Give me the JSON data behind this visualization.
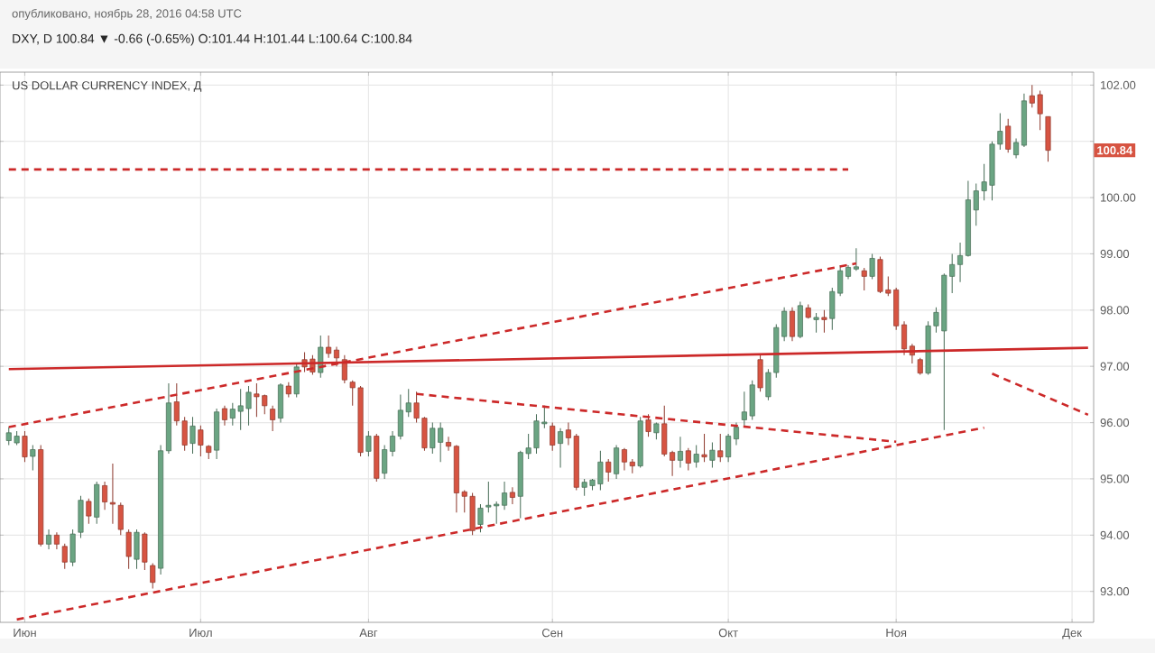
{
  "chart_data": {
    "type": "candlestick",
    "title": "опубликовано, ноябрь 28, 2016 04:58 UTC",
    "subtitle": "DXY, D 100.84 ▼ -0.66 (-0.65%) O:101.44 H:101.44 L:100.64 C:100.84",
    "annotations": [
      "US DOLLAR CURRENCY INDEX, Д",
      {
        "text": "100.84",
        "y": 100.84
      }
    ],
    "categories": [
      null,
      null,
      "Июн",
      null,
      null,
      null,
      null,
      null,
      null,
      null,
      null,
      null,
      null,
      null,
      null,
      null,
      null,
      null,
      null,
      null,
      null,
      null,
      null,
      null,
      "Июл",
      null,
      null,
      null,
      null,
      null,
      null,
      null,
      null,
      null,
      null,
      null,
      null,
      null,
      null,
      null,
      null,
      null,
      null,
      null,
      null,
      "Авг",
      null,
      null,
      null,
      null,
      null,
      null,
      null,
      null,
      null,
      null,
      null,
      null,
      null,
      null,
      null,
      null,
      null,
      null,
      null,
      null,
      null,
      null,
      "Сен",
      null,
      null,
      null,
      null,
      null,
      null,
      null,
      null,
      null,
      null,
      null,
      null,
      null,
      null,
      null,
      null,
      null,
      null,
      null,
      null,
      null,
      "Окт",
      null,
      null,
      null,
      null,
      null,
      null,
      null,
      null,
      null,
      null,
      null,
      null,
      null,
      null,
      null,
      null,
      null,
      null,
      null,
      null,
      "Ноя",
      null,
      null,
      null,
      null,
      null,
      null,
      null,
      null,
      null,
      null,
      null,
      null,
      null,
      null,
      null,
      null,
      null,
      null,
      null,
      null,
      null,
      "Дек",
      null,
      null
    ],
    "ylim": [
      92.45,
      102.23
    ],
    "yticks": [
      {
        "value": 93,
        "label": "93.00"
      },
      {
        "value": 94,
        "label": "94.00"
      },
      {
        "value": 95,
        "label": "95.00"
      },
      {
        "value": 96,
        "label": "96.00"
      },
      {
        "value": 97,
        "label": "97.00"
      },
      {
        "value": 98,
        "label": "98.00"
      },
      {
        "value": 99,
        "label": "99.00"
      },
      {
        "value": 100,
        "label": "100.00"
      },
      {
        "value": 101,
        "label": null
      },
      {
        "value": 102,
        "label": "102.00"
      }
    ],
    "grid": true,
    "series": [
      {
        "ohlc": [
          [
            95.68,
            95.92,
            95.6,
            95.82
          ],
          [
            95.64,
            95.85,
            95.6,
            95.76
          ],
          [
            95.76,
            95.85,
            95.3,
            95.39
          ],
          [
            95.4,
            95.6,
            95.15,
            95.52
          ],
          [
            95.52,
            95.6,
            93.8,
            93.84
          ],
          [
            93.84,
            94.1,
            93.75,
            94.0
          ],
          [
            94.0,
            94.05,
            93.75,
            93.84
          ],
          [
            93.8,
            93.85,
            93.4,
            93.52
          ],
          [
            93.52,
            94.1,
            93.45,
            94.02
          ],
          [
            94.05,
            94.7,
            93.95,
            94.62
          ],
          [
            94.6,
            94.65,
            94.2,
            94.34
          ],
          [
            94.32,
            94.95,
            94.2,
            94.9
          ],
          [
            94.88,
            94.95,
            94.45,
            94.59
          ],
          [
            94.58,
            95.27,
            94.2,
            94.55
          ],
          [
            94.53,
            94.58,
            94.0,
            94.1
          ],
          [
            94.05,
            94.1,
            93.4,
            93.62
          ],
          [
            93.57,
            94.1,
            93.4,
            94.05
          ],
          [
            94.02,
            94.05,
            93.38,
            93.52
          ],
          [
            93.46,
            93.5,
            93.05,
            93.16
          ],
          [
            93.41,
            95.6,
            93.3,
            95.5
          ],
          [
            95.5,
            96.7,
            95.45,
            96.35
          ],
          [
            96.37,
            96.7,
            95.95,
            96.03
          ],
          [
            96.03,
            96.1,
            95.5,
            95.6
          ],
          [
            95.63,
            96.1,
            95.45,
            95.94
          ],
          [
            95.87,
            95.95,
            95.4,
            95.6
          ],
          [
            95.58,
            95.6,
            95.35,
            95.47
          ],
          [
            95.51,
            96.25,
            95.35,
            96.19
          ],
          [
            96.25,
            96.3,
            95.95,
            96.05
          ],
          [
            96.08,
            96.35,
            95.95,
            96.24
          ],
          [
            96.2,
            96.6,
            95.87,
            96.3
          ],
          [
            96.25,
            96.65,
            95.95,
            96.54
          ],
          [
            96.51,
            96.7,
            96.1,
            96.46
          ],
          [
            96.48,
            96.5,
            96.15,
            96.3
          ],
          [
            96.24,
            96.3,
            95.85,
            96.05
          ],
          [
            96.08,
            96.7,
            96.0,
            96.67
          ],
          [
            96.65,
            96.72,
            96.45,
            96.51
          ],
          [
            96.51,
            97.05,
            96.45,
            96.99
          ],
          [
            97.12,
            97.25,
            96.9,
            96.99
          ],
          [
            97.13,
            97.2,
            96.85,
            96.9
          ],
          [
            96.89,
            97.55,
            96.8,
            97.34
          ],
          [
            97.34,
            97.55,
            97.15,
            97.23
          ],
          [
            97.29,
            97.35,
            97.0,
            97.15
          ],
          [
            97.12,
            97.2,
            96.7,
            96.76
          ],
          [
            96.72,
            96.75,
            96.3,
            96.62
          ],
          [
            96.62,
            96.65,
            95.4,
            95.47
          ],
          [
            95.49,
            95.85,
            95.4,
            95.76
          ],
          [
            95.76,
            95.8,
            94.95,
            95.01
          ],
          [
            95.1,
            95.6,
            95.0,
            95.52
          ],
          [
            95.49,
            95.85,
            95.4,
            95.76
          ],
          [
            95.76,
            96.5,
            95.7,
            96.22
          ],
          [
            96.19,
            96.6,
            96.1,
            96.35
          ],
          [
            96.35,
            96.55,
            96.0,
            96.08
          ],
          [
            96.08,
            96.1,
            95.5,
            95.55
          ],
          [
            95.55,
            96.0,
            95.45,
            95.9
          ],
          [
            95.65,
            96.0,
            95.3,
            95.9
          ],
          [
            95.65,
            95.75,
            95.5,
            95.58
          ],
          [
            95.58,
            95.6,
            94.4,
            94.75
          ],
          [
            94.77,
            94.8,
            94.4,
            94.69
          ],
          [
            94.69,
            94.75,
            94.0,
            94.08
          ],
          [
            94.19,
            94.55,
            94.05,
            94.48
          ],
          [
            94.5,
            94.95,
            94.4,
            94.53
          ],
          [
            94.52,
            94.6,
            94.2,
            94.55
          ],
          [
            94.53,
            94.95,
            94.45,
            94.75
          ],
          [
            94.76,
            94.85,
            94.55,
            94.67
          ],
          [
            94.69,
            95.5,
            94.3,
            95.47
          ],
          [
            95.45,
            95.8,
            95.35,
            95.55
          ],
          [
            95.55,
            96.15,
            95.45,
            96.03
          ],
          [
            95.98,
            96.3,
            95.9,
            96.01
          ],
          [
            95.94,
            96.0,
            95.5,
            95.6
          ],
          [
            95.63,
            95.9,
            95.2,
            95.84
          ],
          [
            95.87,
            96.0,
            95.6,
            95.73
          ],
          [
            95.76,
            95.8,
            94.8,
            94.85
          ],
          [
            94.85,
            95.0,
            94.7,
            94.94
          ],
          [
            94.88,
            95.0,
            94.8,
            94.98
          ],
          [
            94.91,
            95.5,
            94.8,
            95.3
          ],
          [
            95.3,
            95.35,
            94.95,
            95.12
          ],
          [
            95.09,
            95.6,
            95.0,
            95.55
          ],
          [
            95.52,
            95.55,
            95.15,
            95.3
          ],
          [
            95.3,
            95.35,
            95.1,
            95.23
          ],
          [
            95.23,
            96.1,
            95.2,
            96.03
          ],
          [
            96.05,
            96.15,
            95.75,
            95.84
          ],
          [
            95.82,
            96.0,
            95.7,
            95.98
          ],
          [
            95.98,
            96.3,
            95.4,
            95.44
          ],
          [
            95.47,
            95.5,
            95.05,
            95.33
          ],
          [
            95.33,
            95.75,
            95.2,
            95.49
          ],
          [
            95.5,
            95.55,
            95.15,
            95.28
          ],
          [
            95.3,
            95.6,
            95.2,
            95.44
          ],
          [
            95.43,
            95.8,
            95.3,
            95.39
          ],
          [
            95.33,
            95.65,
            95.2,
            95.51
          ],
          [
            95.5,
            95.8,
            95.3,
            95.39
          ],
          [
            95.39,
            95.8,
            95.3,
            95.76
          ],
          [
            95.71,
            96.0,
            95.6,
            95.92
          ],
          [
            96.05,
            96.55,
            95.95,
            96.19
          ],
          [
            96.12,
            96.75,
            96.05,
            96.67
          ],
          [
            97.12,
            97.2,
            96.55,
            96.62
          ],
          [
            96.46,
            96.95,
            96.4,
            96.89
          ],
          [
            96.89,
            97.75,
            96.8,
            97.69
          ],
          [
            97.53,
            98.05,
            97.45,
            97.98
          ],
          [
            97.98,
            98.05,
            97.45,
            97.53
          ],
          [
            97.53,
            98.15,
            97.5,
            98.08
          ],
          [
            98.04,
            98.1,
            97.85,
            97.87
          ],
          [
            97.83,
            97.95,
            97.6,
            97.87
          ],
          [
            97.87,
            98.0,
            97.6,
            97.83
          ],
          [
            97.85,
            98.4,
            97.65,
            98.33
          ],
          [
            98.3,
            98.8,
            98.25,
            98.7
          ],
          [
            98.6,
            98.8,
            98.55,
            98.76
          ],
          [
            98.73,
            99.1,
            98.7,
            98.77
          ],
          [
            98.7,
            98.75,
            98.35,
            98.6
          ],
          [
            98.6,
            99.0,
            98.55,
            98.92
          ],
          [
            98.9,
            98.95,
            98.3,
            98.33
          ],
          [
            98.36,
            98.6,
            98.25,
            98.3
          ],
          [
            98.36,
            98.4,
            97.65,
            97.72
          ],
          [
            97.74,
            97.8,
            97.2,
            97.31
          ],
          [
            97.36,
            97.4,
            97.05,
            97.2
          ],
          [
            97.12,
            97.15,
            96.85,
            96.88
          ],
          [
            96.88,
            97.8,
            96.85,
            97.72
          ],
          [
            97.72,
            98.05,
            97.6,
            97.96
          ],
          [
            97.63,
            98.65,
            95.87,
            98.62
          ],
          [
            98.6,
            99.0,
            98.3,
            98.81
          ],
          [
            98.81,
            99.2,
            98.5,
            98.97
          ],
          [
            98.97,
            100.3,
            98.95,
            99.96
          ],
          [
            99.78,
            100.25,
            99.5,
            100.12
          ],
          [
            100.12,
            100.6,
            99.95,
            100.28
          ],
          [
            100.22,
            101.0,
            99.95,
            100.95
          ],
          [
            100.95,
            101.5,
            100.85,
            101.18
          ],
          [
            101.27,
            101.4,
            100.8,
            100.86
          ],
          [
            100.76,
            101.05,
            100.7,
            100.98
          ],
          [
            100.93,
            101.85,
            100.9,
            101.72
          ],
          [
            101.81,
            102.0,
            101.6,
            101.68
          ],
          [
            101.83,
            101.9,
            101.2,
            101.49
          ],
          [
            101.44,
            101.44,
            100.64,
            100.84
          ],
          null,
          null,
          null,
          null,
          null
        ],
        "colors": [
          "#6ba583",
          "#6ba583",
          "#d75442",
          "#6ba583",
          "#d75442",
          "#6ba583",
          "#d75442",
          "#d75442",
          "#6ba583",
          "#6ba583",
          "#d75442",
          "#6ba583",
          "#d75442",
          "#d75442",
          "#d75442",
          "#d75442",
          "#6ba583",
          "#d75442",
          "#d75442",
          "#6ba583",
          "#6ba583",
          "#d75442",
          "#d75442",
          "#6ba583",
          "#d75442",
          "#d75442",
          "#6ba583",
          "#d75442",
          "#6ba583",
          "#6ba583",
          "#6ba583",
          "#d75442",
          "#d75442",
          "#d75442",
          "#6ba583",
          "#d75442",
          "#6ba583",
          "#d75442",
          "#d75442",
          "#6ba583",
          "#d75442",
          "#d75442",
          "#d75442",
          "#d75442",
          "#d75442",
          "#6ba583",
          "#d75442",
          "#6ba583",
          "#6ba583",
          "#6ba583",
          "#6ba583",
          "#d75442",
          "#d75442",
          "#6ba583",
          "#6ba583",
          "#d75442",
          "#d75442",
          "#d75442",
          "#d75442",
          "#6ba583",
          "#6ba583",
          "#6ba583",
          "#6ba583",
          "#d75442",
          "#6ba583",
          "#6ba583",
          "#6ba583",
          "#6ba583",
          "#d75442",
          "#6ba583",
          "#d75442",
          "#d75442",
          "#6ba583",
          "#6ba583",
          "#6ba583",
          "#d75442",
          "#6ba583",
          "#d75442",
          "#d75442",
          "#6ba583",
          "#d75442",
          "#6ba583",
          "#d75442",
          "#d75442",
          "#6ba583",
          "#d75442",
          "#6ba583",
          "#d75442",
          "#6ba583",
          "#d75442",
          "#6ba583",
          "#6ba583",
          "#6ba583",
          "#6ba583",
          "#d75442",
          "#6ba583",
          "#6ba583",
          "#6ba583",
          "#d75442",
          "#6ba583",
          "#d75442",
          "#6ba583",
          "#d75442",
          "#6ba583",
          "#6ba583",
          "#6ba583",
          "#6ba583",
          "#d75442",
          "#6ba583",
          "#d75442",
          "#d75442",
          "#d75442",
          "#d75442",
          "#d75442",
          "#d75442",
          "#6ba583",
          "#6ba583",
          "#6ba583",
          "#6ba583",
          "#6ba583",
          "#6ba583",
          "#6ba583",
          "#6ba583",
          "#6ba583",
          "#6ba583",
          "#d75442",
          "#6ba583",
          "#6ba583",
          "#d75442",
          "#d75442",
          "#d75442",
          null,
          null,
          null,
          null,
          null
        ]
      },
      {
        "type": "line",
        "color": "#cc2929",
        "line_style": "dashed",
        "values": [
          100.5,
          null,
          null,
          null,
          null,
          null,
          null,
          null,
          null,
          null,
          null,
          null,
          null,
          null,
          null,
          null,
          null,
          null,
          null,
          null,
          null,
          null,
          null,
          null,
          null,
          null,
          null,
          null,
          null,
          null,
          null,
          null,
          null,
          null,
          null,
          null,
          null,
          null,
          null,
          null,
          null,
          null,
          null,
          null,
          null,
          null,
          null,
          null,
          null,
          null,
          null,
          null,
          null,
          null,
          null,
          null,
          null,
          null,
          null,
          null,
          null,
          null,
          null,
          null,
          null,
          null,
          null,
          null,
          null,
          null,
          null,
          null,
          null,
          null,
          null,
          null,
          null,
          null,
          null,
          null,
          null,
          null,
          null,
          null,
          null,
          null,
          null,
          null,
          null,
          null,
          null,
          null,
          null,
          null,
          null,
          null,
          null,
          null,
          null,
          null,
          null,
          null,
          null,
          null,
          null,
          100.5,
          null,
          null,
          null,
          null,
          null,
          null,
          null,
          null,
          null,
          null,
          null,
          null,
          null,
          null,
          null,
          null,
          null,
          null,
          null,
          null,
          null,
          null,
          null,
          null,
          null,
          null,
          null,
          null,
          null,
          null
        ]
      },
      {
        "type": "line",
        "color": "#cc2929",
        "line_style": "solid",
        "values": [
          96.95,
          null,
          null,
          null,
          null,
          null,
          null,
          null,
          null,
          null,
          null,
          null,
          null,
          null,
          null,
          null,
          null,
          null,
          null,
          null,
          null,
          null,
          null,
          null,
          null,
          null,
          null,
          null,
          null,
          null,
          null,
          null,
          null,
          null,
          null,
          null,
          null,
          null,
          null,
          null,
          null,
          null,
          null,
          null,
          null,
          null,
          null,
          null,
          null,
          null,
          null,
          null,
          null,
          null,
          null,
          null,
          null,
          null,
          null,
          null,
          null,
          null,
          null,
          null,
          null,
          null,
          null,
          null,
          null,
          null,
          null,
          null,
          null,
          null,
          null,
          null,
          null,
          null,
          null,
          null,
          null,
          null,
          null,
          null,
          null,
          null,
          null,
          null,
          null,
          null,
          null,
          null,
          null,
          null,
          null,
          null,
          null,
          null,
          null,
          null,
          null,
          null,
          null,
          null,
          null,
          null,
          null,
          null,
          null,
          null,
          null,
          null,
          null,
          null,
          null,
          null,
          null,
          null,
          null,
          null,
          null,
          null,
          null,
          null,
          null,
          null,
          null,
          null,
          null,
          null,
          null,
          null,
          null,
          null,
          null,
          97.33
        ]
      },
      {
        "type": "line",
        "color": "#cc2929",
        "line_style": "dashed",
        "values": [
          95.92,
          null,
          null,
          null,
          null,
          null,
          null,
          null,
          null,
          null,
          null,
          null,
          null,
          null,
          null,
          null,
          null,
          null,
          null,
          null,
          null,
          null,
          null,
          null,
          null,
          null,
          null,
          null,
          null,
          null,
          null,
          null,
          null,
          null,
          null,
          null,
          null,
          null,
          null,
          null,
          null,
          null,
          null,
          null,
          null,
          null,
          null,
          null,
          null,
          null,
          null,
          null,
          null,
          null,
          null,
          null,
          null,
          null,
          null,
          null,
          null,
          null,
          null,
          null,
          null,
          null,
          null,
          null,
          null,
          null,
          null,
          null,
          null,
          null,
          null,
          null,
          null,
          null,
          null,
          null,
          null,
          null,
          null,
          null,
          null,
          null,
          null,
          null,
          null,
          null,
          null,
          null,
          null,
          null,
          null,
          null,
          null,
          null,
          null,
          null,
          null,
          null,
          null,
          null,
          null,
          null,
          98.83,
          null,
          null,
          null,
          null,
          null,
          null,
          null,
          null,
          null,
          null,
          null,
          null,
          null,
          null,
          null,
          null,
          null,
          null,
          null,
          null,
          null,
          null,
          null,
          null,
          null,
          null,
          null,
          null,
          null
        ]
      },
      {
        "type": "line",
        "color": "#cc2929",
        "line_style": "dashed",
        "values": [
          null,
          92.5,
          null,
          null,
          null,
          null,
          null,
          null,
          null,
          null,
          null,
          null,
          null,
          null,
          null,
          null,
          null,
          null,
          null,
          null,
          null,
          null,
          null,
          null,
          null,
          null,
          null,
          null,
          null,
          null,
          null,
          null,
          null,
          null,
          null,
          null,
          null,
          null,
          null,
          null,
          null,
          null,
          null,
          null,
          null,
          null,
          null,
          null,
          null,
          null,
          null,
          null,
          null,
          null,
          null,
          null,
          null,
          null,
          null,
          null,
          null,
          null,
          null,
          null,
          null,
          null,
          null,
          null,
          null,
          null,
          null,
          null,
          null,
          null,
          null,
          null,
          null,
          null,
          null,
          null,
          null,
          null,
          null,
          null,
          null,
          null,
          null,
          null,
          null,
          null,
          null,
          null,
          null,
          null,
          null,
          null,
          null,
          null,
          null,
          null,
          null,
          null,
          null,
          null,
          null,
          null,
          null,
          null,
          null,
          null,
          null,
          null,
          null,
          null,
          null,
          null,
          null,
          null,
          null,
          null,
          null,
          null,
          95.91,
          null,
          null,
          null,
          null,
          null,
          null,
          null,
          null,
          null,
          null,
          null,
          null,
          null
        ]
      },
      {
        "type": "line",
        "color": "#cc2929",
        "line_style": "dashed",
        "values": [
          null,
          null,
          null,
          null,
          null,
          null,
          null,
          null,
          null,
          null,
          null,
          null,
          null,
          null,
          null,
          null,
          null,
          null,
          null,
          null,
          null,
          null,
          null,
          null,
          null,
          null,
          null,
          null,
          null,
          null,
          null,
          null,
          null,
          null,
          null,
          null,
          null,
          null,
          null,
          null,
          null,
          null,
          null,
          null,
          null,
          null,
          null,
          null,
          null,
          null,
          null,
          96.51,
          null,
          null,
          null,
          null,
          null,
          null,
          null,
          null,
          null,
          null,
          null,
          null,
          null,
          null,
          null,
          null,
          null,
          null,
          null,
          null,
          null,
          null,
          null,
          null,
          null,
          null,
          null,
          null,
          null,
          null,
          null,
          null,
          null,
          null,
          null,
          null,
          null,
          null,
          null,
          null,
          null,
          null,
          null,
          null,
          null,
          null,
          null,
          null,
          null,
          null,
          null,
          null,
          null,
          null,
          null,
          null,
          null,
          null,
          null,
          95.66,
          null,
          null,
          null,
          null,
          null,
          null,
          null,
          null,
          null,
          null,
          null,
          null,
          null,
          null,
          null,
          null,
          null,
          null,
          null,
          null,
          null,
          null,
          null,
          null
        ]
      },
      {
        "type": "line",
        "color": "#cc2929",
        "line_style": "dashed",
        "values": [
          null,
          null,
          null,
          null,
          null,
          null,
          null,
          null,
          null,
          null,
          null,
          null,
          null,
          null,
          null,
          null,
          null,
          null,
          null,
          null,
          null,
          null,
          null,
          null,
          null,
          null,
          null,
          null,
          null,
          null,
          null,
          null,
          null,
          null,
          null,
          null,
          null,
          null,
          null,
          null,
          null,
          null,
          null,
          null,
          null,
          null,
          null,
          null,
          null,
          null,
          null,
          null,
          null,
          null,
          null,
          null,
          null,
          null,
          null,
          null,
          null,
          null,
          null,
          null,
          null,
          null,
          null,
          null,
          null,
          null,
          null,
          null,
          null,
          null,
          null,
          null,
          null,
          null,
          null,
          null,
          null,
          null,
          null,
          null,
          null,
          null,
          null,
          null,
          null,
          null,
          null,
          null,
          null,
          null,
          null,
          null,
          null,
          null,
          null,
          null,
          null,
          null,
          null,
          null,
          null,
          null,
          null,
          null,
          null,
          null,
          null,
          null,
          null,
          null,
          null,
          null,
          null,
          null,
          null,
          null,
          null,
          null,
          null,
          96.87,
          null,
          null,
          null,
          null,
          null,
          null,
          null,
          null,
          null,
          null,
          null,
          96.14
        ]
      }
    ]
  }
}
